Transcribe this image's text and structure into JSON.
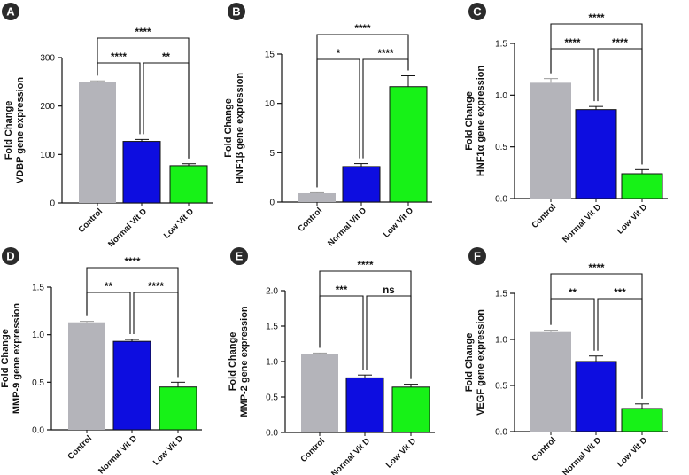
{
  "colors": {
    "control": "#b4b4ba",
    "normal": "#0d0de0",
    "low": "#17f217",
    "badge": "#2b2b2b"
  },
  "chart_data": [
    {
      "type": "bar",
      "panel": "A",
      "ylabel": [
        "Fold Change",
        "VDBP gene expression"
      ],
      "categories": [
        "Control",
        "Normal Vit D",
        "Low Vit D"
      ],
      "values": [
        250,
        127,
        77
      ],
      "errors": [
        2,
        4,
        4
      ],
      "ylim": [
        0,
        300
      ],
      "yticks": [
        0,
        100,
        200,
        300
      ],
      "tick_labels": [
        "0",
        "100",
        "200",
        "300"
      ],
      "brackets": [
        {
          "from": 0,
          "to": 2,
          "label": "****"
        },
        {
          "from": 0,
          "to": 1,
          "label": "****"
        },
        {
          "from": 1,
          "to": 2,
          "label": "**"
        }
      ]
    },
    {
      "type": "bar",
      "panel": "B",
      "ylabel": [
        "Fold Change",
        "HNF1β gene expression"
      ],
      "categories": [
        "Control",
        "Normal Vit D",
        "Low Vit D"
      ],
      "values": [
        0.9,
        3.6,
        11.7
      ],
      "errors": [
        0.05,
        0.3,
        1.1
      ],
      "ylim": [
        0,
        15
      ],
      "yticks": [
        0,
        5,
        10,
        15
      ],
      "tick_labels": [
        "0",
        "5",
        "10",
        "15"
      ],
      "brackets": [
        {
          "from": 0,
          "to": 2,
          "label": "****"
        },
        {
          "from": 0,
          "to": 1,
          "label": "*"
        },
        {
          "from": 1,
          "to": 2,
          "label": "****"
        }
      ]
    },
    {
      "type": "bar",
      "panel": "C",
      "ylabel": [
        "Fold Change",
        "HNF1α gene expression"
      ],
      "categories": [
        "Control",
        "Normal Vit D",
        "Low Vit D"
      ],
      "values": [
        1.12,
        0.86,
        0.24
      ],
      "errors": [
        0.04,
        0.03,
        0.04
      ],
      "ylim": [
        0,
        1.5
      ],
      "yticks": [
        0,
        0.5,
        1.0,
        1.5
      ],
      "tick_labels": [
        "0.0",
        "0.5",
        "1.0",
        "1.5"
      ],
      "brackets": [
        {
          "from": 0,
          "to": 2,
          "label": "****"
        },
        {
          "from": 0,
          "to": 1,
          "label": "****"
        },
        {
          "from": 1,
          "to": 2,
          "label": "****"
        }
      ]
    },
    {
      "type": "bar",
      "panel": "D",
      "ylabel": [
        "Fold Change",
        "MMP-9 gene expression"
      ],
      "categories": [
        "Control",
        "Normal Vit D",
        "Low Vit D"
      ],
      "values": [
        1.13,
        0.93,
        0.45
      ],
      "errors": [
        0.01,
        0.02,
        0.05
      ],
      "ylim": [
        0,
        1.5
      ],
      "yticks": [
        0,
        0.5,
        1.0,
        1.5
      ],
      "tick_labels": [
        "0.0",
        "0.5",
        "1.0",
        "1.5"
      ],
      "brackets": [
        {
          "from": 0,
          "to": 2,
          "label": "****"
        },
        {
          "from": 0,
          "to": 1,
          "label": "**"
        },
        {
          "from": 1,
          "to": 2,
          "label": "****"
        }
      ]
    },
    {
      "type": "bar",
      "panel": "E",
      "ylabel": [
        "Fold Change",
        "MMP-2 gene expression"
      ],
      "categories": [
        "Control",
        "Normal Vit D",
        "Low Vit D"
      ],
      "values": [
        1.11,
        0.77,
        0.64
      ],
      "errors": [
        0.01,
        0.04,
        0.04
      ],
      "ylim": [
        0,
        2.0
      ],
      "yticks": [
        0,
        0.5,
        1.0,
        1.5,
        2.0
      ],
      "tick_labels": [
        "0.0",
        "0.5",
        "1.0",
        "1.5",
        "2.0"
      ],
      "brackets": [
        {
          "from": 0,
          "to": 2,
          "label": "****"
        },
        {
          "from": 0,
          "to": 1,
          "label": "***"
        },
        {
          "from": 1,
          "to": 2,
          "label": "ns"
        }
      ]
    },
    {
      "type": "bar",
      "panel": "F",
      "ylabel": [
        "Fold Change",
        "VEGF gene expression"
      ],
      "categories": [
        "Control",
        "Normal Vit D",
        "Low Vit D"
      ],
      "values": [
        1.08,
        0.76,
        0.25
      ],
      "errors": [
        0.02,
        0.06,
        0.05
      ],
      "ylim": [
        0,
        1.5
      ],
      "yticks": [
        0,
        0.5,
        1.0,
        1.5
      ],
      "tick_labels": [
        "0.0",
        "0.5",
        "1.0",
        "1.5"
      ],
      "brackets": [
        {
          "from": 0,
          "to": 2,
          "label": "****"
        },
        {
          "from": 0,
          "to": 1,
          "label": "**"
        },
        {
          "from": 1,
          "to": 2,
          "label": "***"
        }
      ]
    }
  ]
}
